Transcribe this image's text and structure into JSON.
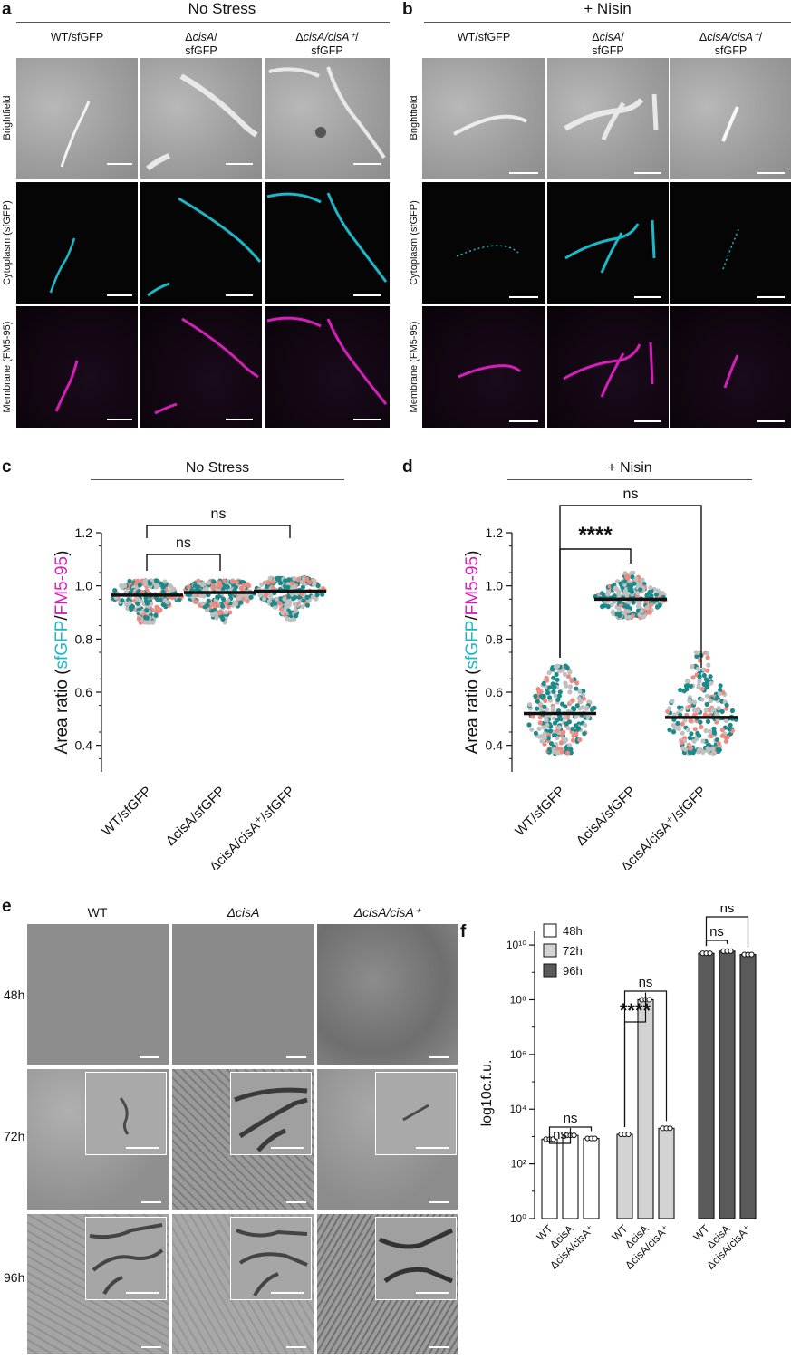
{
  "panel_a": {
    "letter": "a",
    "title": "No Stress",
    "columns": [
      {
        "pre": "WT/sfGFP",
        "ital": "",
        "post": "",
        "line2": ""
      },
      {
        "pre": "Δ",
        "ital": "cisA",
        "post": "/",
        "line2": "sfGFP"
      },
      {
        "pre": "Δ",
        "ital": "cisA/cisA⁺",
        "post": "/",
        "line2": "sfGFP"
      }
    ],
    "rows": [
      "Brightfield",
      "Cytoplasm (sfGFP)",
      "Membrane (FM5-95)"
    ]
  },
  "panel_b": {
    "letter": "b",
    "title": "+ Nisin",
    "columns": [
      {
        "pre": "WT/sfGFP",
        "ital": "",
        "post": "",
        "line2": ""
      },
      {
        "pre": "Δ",
        "ital": "cisA",
        "post": "/",
        "line2": "sfGFP"
      },
      {
        "pre": "Δ",
        "ital": "cisA/cisA⁺",
        "post": "/",
        "line2": "sfGFP"
      }
    ],
    "rows": [
      "Brightfield",
      "Cytoplasm (sfGFP)",
      "Membrane (FM5-95)"
    ]
  },
  "panel_c": {
    "letter": "c",
    "title": "No Stress"
  },
  "panel_d": {
    "letter": "d",
    "title": "+ Nisin"
  },
  "panel_e": {
    "letter": "e",
    "columns": [
      "WT",
      "ΔcisA",
      "ΔcisA/cisA⁺"
    ],
    "rows": [
      "48h",
      "72h",
      "96h"
    ]
  },
  "panel_f": {
    "letter": "f"
  },
  "colors": {
    "cyan": "#1ab8c8",
    "magenta": "#d41fb8",
    "teal_dot": "#1a8a8a",
    "salmon_dot": "#f08a80",
    "grey_dot": "#c0c0c0"
  },
  "chart_data": [
    {
      "type": "scatter",
      "title": "No Stress",
      "ylabel_parts": [
        "Area ratio (",
        "sfGFP",
        "/",
        "FM5-95",
        ")"
      ],
      "ylim": [
        0.3,
        1.2
      ],
      "yticks": [
        "0.4",
        "0.6",
        "0.8",
        "1.0",
        "1.2"
      ],
      "categories": [
        "WT/sfGFP",
        "ΔcisA/sfGFP",
        "ΔcisA/cisA⁺/sfGFP"
      ],
      "medians": [
        0.965,
        0.975,
        0.98
      ],
      "spread_low": [
        0.86,
        0.86,
        0.87
      ],
      "spread_high": [
        1.02,
        1.02,
        1.03
      ],
      "comparisons": [
        {
          "from": 0,
          "to": 1,
          "label": "ns"
        },
        {
          "from": 0,
          "to": 2,
          "label": "ns"
        }
      ]
    },
    {
      "type": "scatter",
      "title": "+ Nisin",
      "ylabel_parts": [
        "Area ratio (",
        "sfGFP",
        "/",
        "FM5-95",
        ")"
      ],
      "ylim": [
        0.3,
        1.2
      ],
      "yticks": [
        "0.4",
        "0.6",
        "0.8",
        "1.0",
        "1.2"
      ],
      "categories": [
        "WT/sfGFP",
        "ΔcisA/sfGFP",
        "ΔcisA/cisA⁺/sfGFP"
      ],
      "medians": [
        0.52,
        0.95,
        0.505
      ],
      "spread_low": [
        0.37,
        0.88,
        0.37
      ],
      "spread_high": [
        0.7,
        1.05,
        0.75
      ],
      "comparisons": [
        {
          "from": 0,
          "to": 1,
          "label": "****"
        },
        {
          "from": 0,
          "to": 2,
          "label": "ns"
        }
      ]
    },
    {
      "type": "bar",
      "ylabel": "log10c.f.u.",
      "yscale": "log",
      "yticks": [
        "10⁰",
        "10²",
        "10⁴",
        "10⁶",
        "10⁸",
        "10¹⁰"
      ],
      "legend": [
        "48h",
        "72h",
        "96h"
      ],
      "legend_colors": [
        "#ffffff",
        "#d3d3d3",
        "#5a5a5a"
      ],
      "groups": [
        {
          "name": "48h",
          "categories": [
            "WT",
            "ΔcisA",
            "ΔcisA/cisA⁺"
          ],
          "values": [
            800,
            1100,
            850
          ]
        },
        {
          "name": "72h",
          "categories": [
            "WT",
            "ΔcisA",
            "ΔcisA/cisA⁺"
          ],
          "values": [
            1200,
            100000000,
            2000
          ]
        },
        {
          "name": "96h",
          "categories": [
            "WT",
            "ΔcisA",
            "ΔcisA/cisA⁺"
          ],
          "values": [
            5000000000,
            6000000000,
            4500000000
          ]
        }
      ],
      "comparisons": [
        {
          "group": 0,
          "from": 0,
          "to": 1,
          "label": "ns"
        },
        {
          "group": 0,
          "from": 0,
          "to": 2,
          "label": "ns"
        },
        {
          "group": 1,
          "from": 0,
          "to": 1,
          "label": "****"
        },
        {
          "group": 1,
          "from": 0,
          "to": 2,
          "label": "ns"
        },
        {
          "group": 2,
          "from": 0,
          "to": 1,
          "label": "ns"
        },
        {
          "group": 2,
          "from": 0,
          "to": 2,
          "label": "ns"
        }
      ]
    }
  ]
}
